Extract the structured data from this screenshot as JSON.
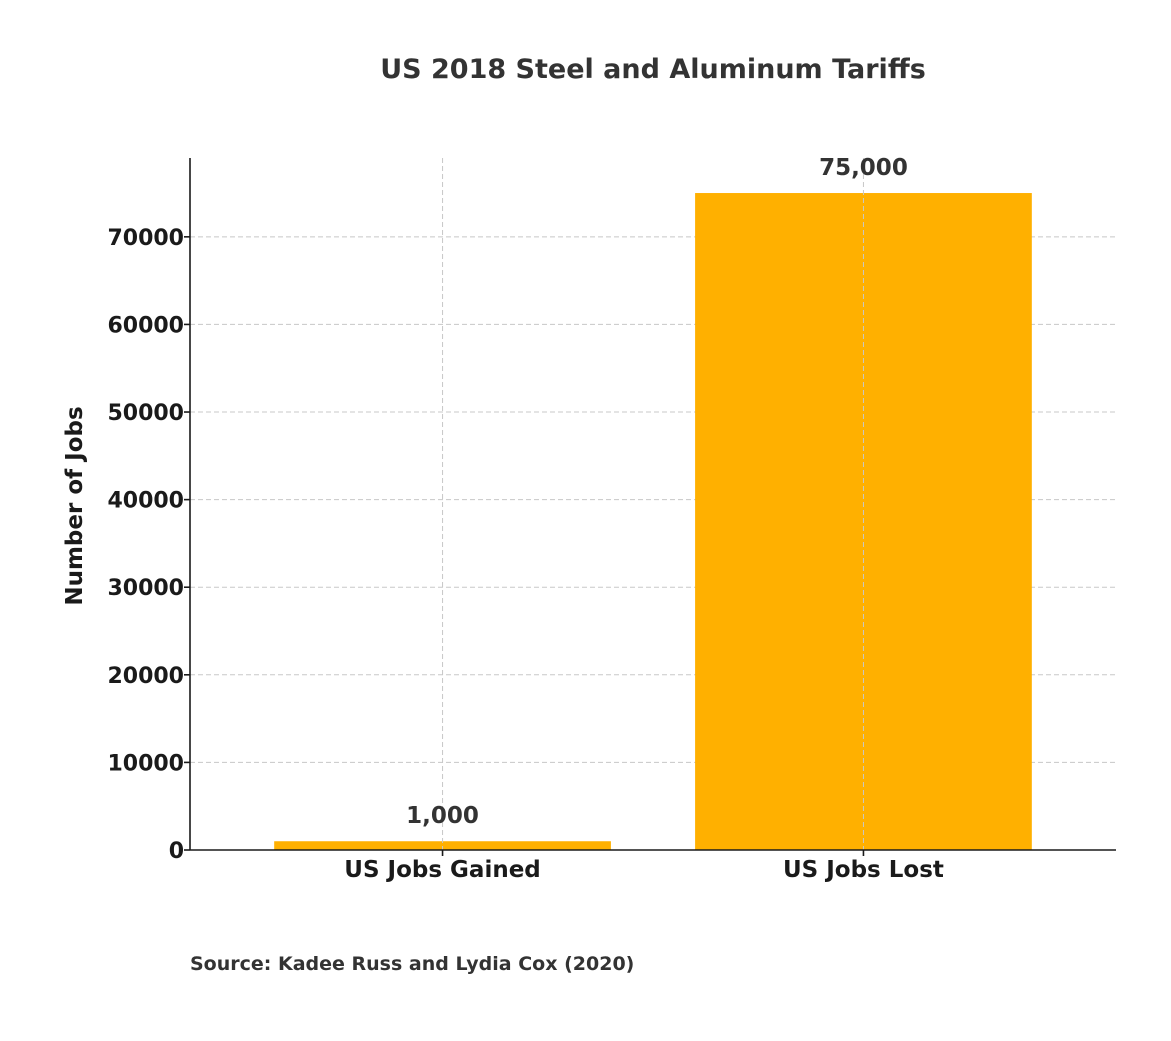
{
  "chart_data": {
    "type": "bar",
    "title": "US 2018 Steel and Aluminum Tariffs",
    "xlabel": "",
    "ylabel": "Number of Jobs",
    "categories": [
      "US Jobs Gained",
      "US Jobs Lost"
    ],
    "values": [
      1000,
      75000
    ],
    "data_labels": [
      "1,000",
      "75,000"
    ],
    "ylim": [
      0,
      79000
    ],
    "yticks": [
      0,
      10000,
      20000,
      30000,
      40000,
      50000,
      60000,
      70000
    ],
    "ytick_labels": [
      "0",
      "10000",
      "20000",
      "30000",
      "40000",
      "50000",
      "60000",
      "70000"
    ],
    "bar_color": "#ffb000",
    "grid": true,
    "legend": "none",
    "source": "Source: Kadee Russ and Lydia Cox (2020)"
  }
}
